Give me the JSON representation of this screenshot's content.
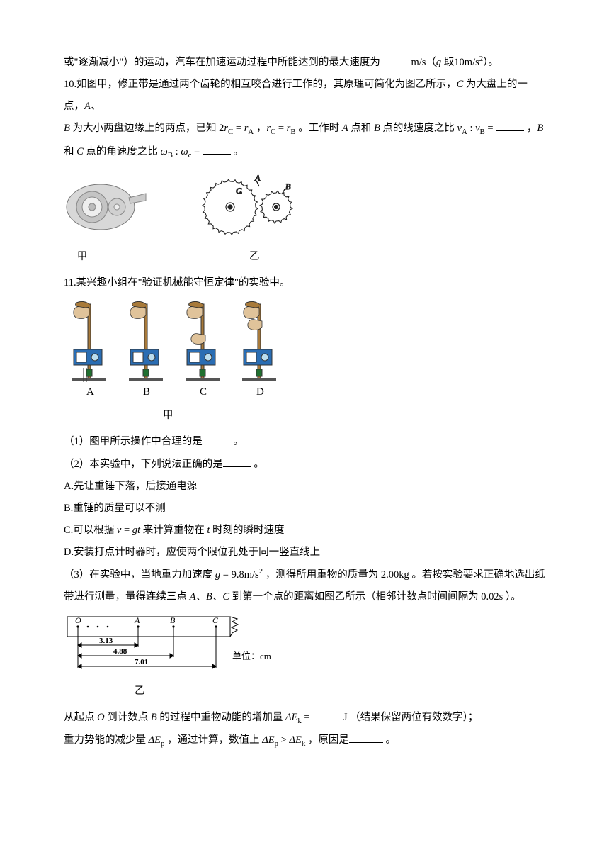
{
  "p9_tail": {
    "text_a": "或\"逐渐减小\"）的运动，汽车在加速运动过程中所能达到的最大速度为",
    "text_b": "m/s（",
    "g_label": "g",
    "g_unit_a": " 取",
    "g_val": "10m/s",
    "g_unit_b": "）。"
  },
  "p10": {
    "lead": "10.如图甲，修正带是通过两个齿轮的相互咬合进行工作的，其原理可简化为图乙所示，",
    "C": "C",
    "lead2": " 为大盘上的一点，",
    "A": "A、",
    "line2a": "B",
    "line2b": " 为大小两盘边缘上的两点，已知 ",
    "eq1a": "2",
    "eq1b": "r",
    "eq1c": "C",
    "eq1e": " = ",
    "eq1d": "r",
    "eq1f": "A",
    "comma": " ，",
    "eq2a": "r",
    "eq2b": "C",
    "eq2c": " = ",
    "eq2d": "r",
    "eq2e": "B",
    "mid": " 。工作时 ",
    "Apt": "A",
    "mid2": " 点和 ",
    "Bpt": "B",
    "mid3": " 点的线速度之比 ",
    "vA": "v",
    "vAs": "A",
    "colon": " : ",
    "vB": "v",
    "vBs": "B",
    "eq": " = ",
    "tail": " ，",
    "B2": "B",
    "line3a": "和 ",
    "Cpt": "C",
    "line3b": " 点的角速度之比 ",
    "wB": "ω",
    "wBs": "B",
    "wc": "ω",
    "wcs": "c",
    "eq2": " = ",
    "tail2": " 。"
  },
  "fig10": {
    "caption_a": "甲",
    "caption_b": "乙",
    "labelA": "A",
    "labelB": "B",
    "labelC": "C",
    "gear_stroke": "#222222",
    "tape_fill": "#b0b0b0"
  },
  "p11": {
    "lead": "11.某兴趣小组在\"验证机械能守恒定律\"的实验中。"
  },
  "fig11a": {
    "labels": [
      "A",
      "B",
      "C",
      "D"
    ],
    "caption": "甲",
    "rod_color": "#a87a3a",
    "box_color": "#2a6db3",
    "hand_color": "#e0c39a",
    "stroke": "#333333"
  },
  "q11_1": {
    "text": "（1）图甲所示操作中合理的是",
    "tail": " 。"
  },
  "q11_2": {
    "text": "（2）本实验中，下列说法正确的是",
    "tail": " 。"
  },
  "q11_2_opts": {
    "A": "A.先让重锤下落，后接通电源",
    "B": "B.重锤的质量可以不测",
    "C_a": "C.可以根据 ",
    "C_v": "v",
    "C_eq": " = ",
    "C_g": "gt",
    "C_b": " 来计算重物在 ",
    "C_t": "t",
    "C_c": " 时刻的瞬时速度",
    "D": "D.安装打点计时器时，应使两个限位孔处于同一竖直线上"
  },
  "q11_3": {
    "a": "（3）在实验中，当地重力加速度 ",
    "g": "g",
    "eq": " = ",
    "gval": "9.8m/s",
    "b": " ，测得所用重物的质量为 ",
    "mval": "2.00kg",
    "c": " 。若按实验要求正确地选出纸",
    "d": "带进行测量，量得连续三点 ",
    "ABC": "A、B、C",
    "e": " 到第一个点的距离如图乙所示（相邻计数点时间间隔为 ",
    "dt": "0.02s",
    "f": " ）。"
  },
  "fig11b": {
    "pts": [
      "O",
      "A",
      "B",
      "C"
    ],
    "d1": "3.13",
    "d2": "4.88",
    "d3": "7.01",
    "unit": "单位：cm",
    "caption": "乙",
    "stroke": "#000000"
  },
  "q11_3b": {
    "a": "从起点 ",
    "O": "O",
    "b": " 到计数点 ",
    "B": "B",
    "c": " 的过程中重物动能的增加量 ",
    "dEk": "ΔE",
    "ks": "k",
    "eq": " = ",
    "unit": " J （结果保留两位有效数字）；"
  },
  "q11_3c": {
    "a": "重力势能的减少量 ",
    "dEp": "ΔE",
    "ps": "p",
    "b": " ，通过计算，数值上 ",
    "c": " > ",
    "d": " ，原因是",
    "tail": " 。"
  }
}
